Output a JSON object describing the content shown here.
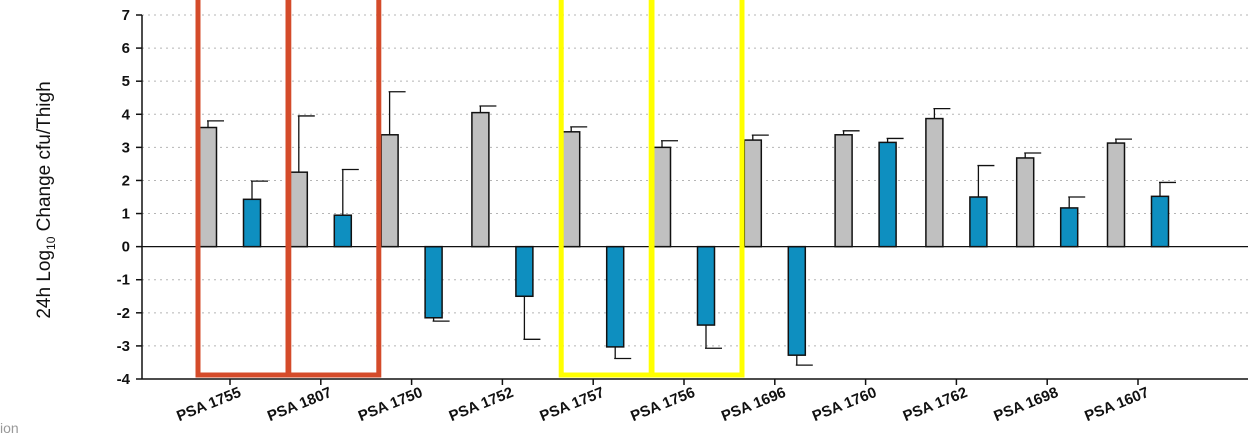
{
  "corner_text": "ion",
  "colors": {
    "series1": "#c0c0c0",
    "series2": "#0e8fc0",
    "highlight_red": "#d44b2a",
    "highlight_yellow": "#ffff00",
    "grid": "#b5b5b5"
  },
  "chart_data": {
    "type": "bar",
    "ylabel": "24h Log",
    "ylabel_sub": "10",
    "ylabel_rest": " Change cfu/Thigh",
    "ylim": [
      -4,
      7
    ],
    "yticks": [
      7,
      6,
      5,
      4,
      3,
      2,
      1,
      0,
      -1,
      -2,
      -3,
      -4
    ],
    "grid": true,
    "categories": [
      "PSA 1755",
      "PSA 1807",
      "PSA 1750",
      "PSA 1752",
      "PSA 1757",
      "PSA 1756",
      "PSA 1696",
      "PSA 1760",
      "PSA 1762",
      "PSA 1698",
      "PSA 1607"
    ],
    "series": [
      {
        "values": [
          3.6,
          2.25,
          3.38,
          4.05,
          3.47,
          3.0,
          3.22,
          3.38,
          3.87,
          2.68,
          3.13
        ],
        "errors": [
          0.2,
          1.7,
          1.3,
          0.2,
          0.15,
          0.2,
          0.15,
          0.12,
          0.3,
          0.15,
          0.12
        ]
      },
      {
        "values": [
          1.43,
          0.95,
          -2.15,
          -1.5,
          -3.03,
          -2.37,
          -3.28,
          3.15,
          1.5,
          1.17,
          1.52
        ],
        "errors": [
          0.55,
          1.38,
          0.1,
          1.3,
          0.35,
          0.7,
          0.3,
          0.12,
          0.95,
          0.33,
          0.42
        ]
      }
    ],
    "highlights": [
      {
        "categories": [
          "PSA 1755"
        ],
        "color": "red"
      },
      {
        "categories": [
          "PSA 1807"
        ],
        "color": "red"
      },
      {
        "categories": [
          "PSA 1757"
        ],
        "color": "yellow"
      },
      {
        "categories": [
          "PSA 1756"
        ],
        "color": "yellow"
      }
    ]
  }
}
